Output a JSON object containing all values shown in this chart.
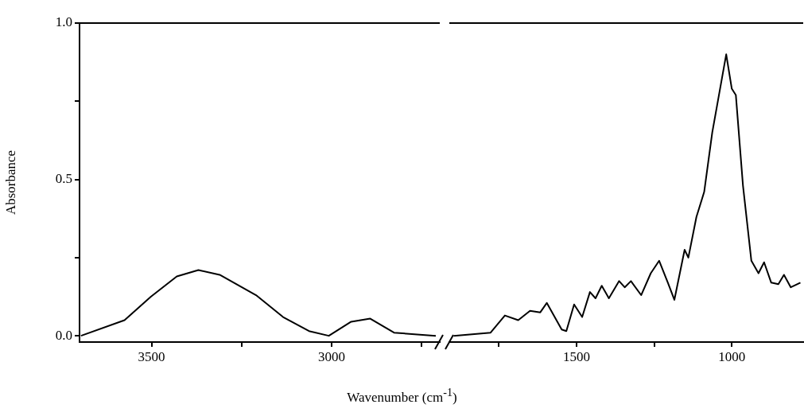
{
  "chart_data": [
    {
      "type": "line",
      "ylabel": "Absorbance",
      "color": "#000000",
      "x": [
        3696,
        3575,
        3502,
        3430,
        3370,
        3311,
        3210,
        3135,
        3063,
        3008,
        2946,
        2893,
        2827,
        2711
      ],
      "values": [
        0.0,
        0.05,
        0.125,
        0.19,
        0.21,
        0.195,
        0.13,
        0.06,
        0.015,
        0.0,
        0.045,
        0.055,
        0.01,
        0.0
      ],
      "xlim": [
        3700,
        2700
      ],
      "xticks": [
        3500,
        {
          "value": 3250,
          "label": null
        },
        3000,
        {
          "value": 2750,
          "label": null
        }
      ],
      "ylim": [
        -0.02,
        1.0
      ],
      "yticks": [
        {
          "value": 0,
          "label": "0.0"
        },
        {
          "value": 0.25,
          "label": null
        },
        {
          "value": 0.5,
          "label": "0.5"
        },
        {
          "value": 0.75,
          "label": null
        },
        {
          "value": 1,
          "label": "1.0"
        }
      ]
    },
    {
      "type": "line",
      "xlabel": "Wavenumber (cm$^{-1}$)",
      "color": "#000000",
      "tick_labels": "x",
      "x": [
        1896,
        1777,
        1731,
        1688,
        1650,
        1617,
        1596,
        1548,
        1533,
        1508,
        1482,
        1457,
        1439,
        1419,
        1396,
        1363,
        1345,
        1325,
        1292,
        1261,
        1234,
        1206,
        1185,
        1152,
        1140,
        1114,
        1089,
        1063,
        1018,
        1000,
        987,
        964,
        937,
        914,
        896,
        873,
        850,
        832,
        810,
        779
      ],
      "values": [
        0.0,
        0.01,
        0.065,
        0.05,
        0.08,
        0.075,
        0.105,
        0.02,
        0.015,
        0.1,
        0.06,
        0.14,
        0.12,
        0.16,
        0.12,
        0.175,
        0.155,
        0.175,
        0.13,
        0.2,
        0.24,
        0.17,
        0.115,
        0.275,
        0.25,
        0.38,
        0.46,
        0.65,
        0.9,
        0.79,
        0.77,
        0.48,
        0.24,
        0.2,
        0.235,
        0.17,
        0.165,
        0.195,
        0.155,
        0.17
      ],
      "xlim": [
        1910,
        770
      ],
      "xticks": [
        {
          "value": 1750,
          "label": null
        },
        1500,
        {
          "value": 1250,
          "label": null
        },
        1000
      ],
      "ylim": [
        -0.02,
        1.0
      ]
    }
  ]
}
